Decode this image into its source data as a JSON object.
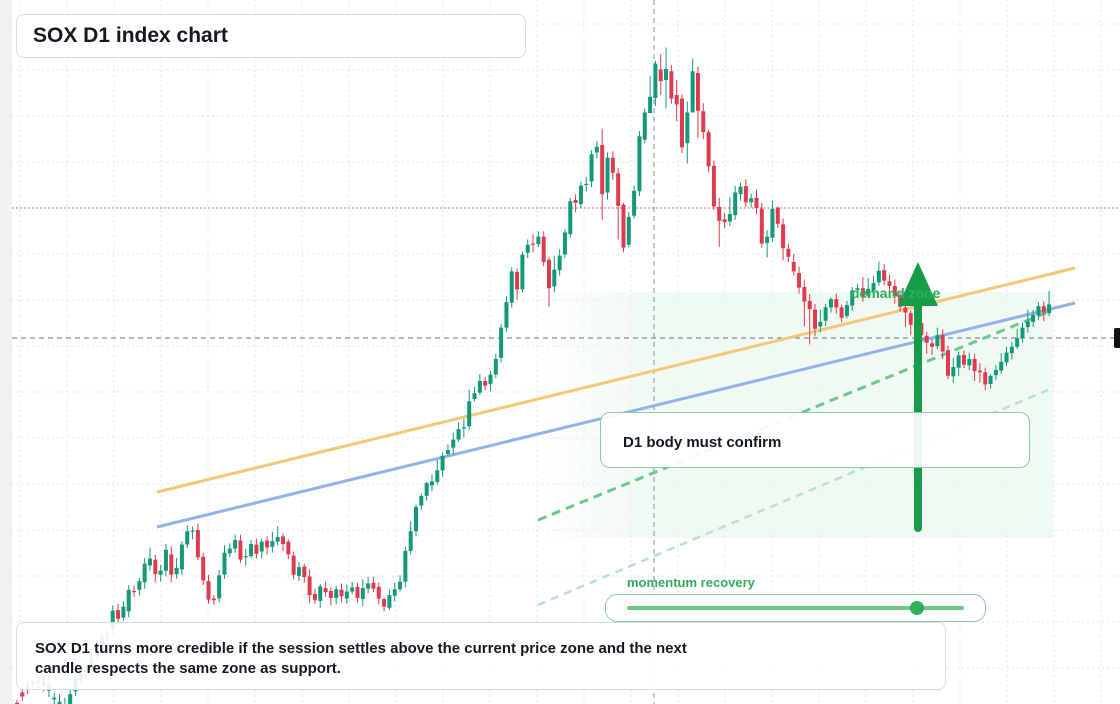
{
  "title": "SOX D1 index chart",
  "annotations": {
    "demand_zone": "demand zone",
    "confirm": "D1 body must confirm",
    "momentum": "momentum recovery",
    "note": "SOX D1 turns more credible if the session settles above the current price zone and the next candle respects the same zone as support."
  },
  "colors": {
    "up": "#12997a",
    "down": "#e03a4e",
    "orange_line": "#f5c878",
    "blue_line": "#93b2ec",
    "green_accent": "#2fae5c"
  },
  "momentum_level": 0.86,
  "chart_data": {
    "type": "candlestick",
    "title": "SOX D1 index chart",
    "ylim": [
      0,
      100
    ],
    "grid": true,
    "candles": [
      [
        -0.5,
        -1.2,
        -2.7,
        0.0
      ],
      [
        1.3,
        0.6,
        -0.2,
        1.9
      ],
      [
        2.5,
        1.7,
        1.0,
        3.5
      ],
      [
        3.2,
        2.8,
        2.0,
        4.0
      ],
      [
        3.0,
        3.4,
        1.8,
        4.5
      ],
      [
        2.5,
        3.2,
        1.5,
        4.4
      ],
      [
        1.6,
        2.8,
        0.5,
        4.2
      ],
      [
        0.1,
        0.4,
        -1.0,
        1.2
      ],
      [
        -1.5,
        -0.3,
        -2.9,
        1.0
      ],
      [
        -2.0,
        -0.8,
        -3.3,
        0.4
      ],
      [
        -2.5,
        1.0,
        -3.5,
        1.9
      ],
      [
        1.5,
        3.7,
        0.7,
        4.7
      ],
      [
        3.2,
        4.6,
        2.5,
        5.6
      ],
      [
        4.8,
        5.4,
        3.5,
        6.5
      ],
      [
        5.2,
        7.4,
        4.4,
        8.7
      ],
      [
        7.5,
        8.3,
        6.5,
        8.9
      ],
      [
        8.6,
        10.7,
        8.0,
        11.4
      ],
      [
        10.9,
        10.9,
        10.2,
        12.1
      ],
      [
        12.1,
        15.4,
        11.2,
        16.3
      ],
      [
        15.5,
        14.0,
        13.0,
        16.6
      ],
      [
        14.2,
        16.1,
        13.7,
        17.0
      ],
      [
        15.3,
        19.0,
        14.3,
        19.8
      ],
      [
        18.8,
        18.7,
        17.8,
        19.7
      ],
      [
        19.0,
        20.5,
        18.0,
        21.0
      ],
      [
        20.3,
        23.5,
        19.2,
        24.5
      ],
      [
        23.2,
        24.4,
        22.3,
        26.3
      ],
      [
        24.2,
        21.7,
        20.3,
        25.0
      ],
      [
        21.6,
        22.3,
        20.4,
        23.3
      ],
      [
        22.3,
        25.9,
        21.3,
        26.9
      ],
      [
        25.1,
        21.6,
        20.3,
        26.5
      ],
      [
        21.7,
        22.8,
        20.9,
        24.5
      ],
      [
        22.5,
        26.8,
        21.6,
        27.4
      ],
      [
        26.8,
        29.1,
        26.2,
        30.1
      ],
      [
        29.2,
        29.2,
        27.7,
        29.9
      ],
      [
        29.3,
        24.6,
        24.1,
        30.4
      ],
      [
        24.7,
        20.6,
        19.8,
        25.4
      ],
      [
        20.5,
        17.3,
        16.6,
        21.6
      ],
      [
        17.5,
        17.2,
        16.4,
        18.1
      ],
      [
        17.5,
        21.5,
        16.8,
        22.4
      ],
      [
        21.6,
        25.4,
        20.9,
        26.7
      ],
      [
        25.3,
        26.1,
        24.6,
        27.0
      ],
      [
        26.1,
        27.6,
        25.4,
        28.5
      ],
      [
        27.5,
        24.2,
        23.6,
        28.5
      ],
      [
        24.6,
        24.8,
        23.1,
        26.1
      ],
      [
        24.8,
        26.9,
        24.5,
        27.6
      ],
      [
        26.8,
        25.2,
        24.4,
        27.8
      ],
      [
        25.6,
        27.3,
        24.4,
        27.8
      ],
      [
        27.5,
        26.3,
        25.1,
        28.2
      ],
      [
        26.4,
        27.4,
        25.4,
        29.0
      ],
      [
        27.3,
        28.1,
        26.7,
        30.0
      ],
      [
        28.2,
        26.9,
        25.7,
        28.7
      ],
      [
        27.3,
        25.1,
        24.3,
        27.7
      ],
      [
        24.9,
        21.6,
        20.8,
        25.6
      ],
      [
        21.4,
        22.9,
        20.5,
        23.8
      ],
      [
        23.0,
        21.2,
        20.2,
        23.5
      ],
      [
        21.3,
        18.1,
        16.7,
        22.5
      ],
      [
        18.3,
        17.2,
        16.6,
        19.2
      ],
      [
        17.1,
        19.6,
        15.9,
        20.0
      ],
      [
        19.3,
        18.6,
        17.8,
        20.4
      ],
      [
        18.8,
        17.6,
        16.3,
        19.4
      ],
      [
        17.6,
        19.1,
        16.5,
        19.7
      ],
      [
        19.0,
        17.9,
        16.8,
        20.1
      ],
      [
        17.5,
        18.7,
        16.6,
        19.9
      ],
      [
        18.7,
        19.4,
        18.3,
        20.4
      ],
      [
        19.5,
        17.6,
        16.8,
        20.2
      ],
      [
        17.4,
        19.3,
        16.2,
        20.8
      ],
      [
        19.2,
        20.1,
        18.4,
        21.2
      ],
      [
        20.2,
        19.2,
        18.6,
        21.2
      ],
      [
        19.5,
        17.5,
        16.5,
        20.3
      ],
      [
        17.4,
        16.1,
        15.3,
        17.7
      ],
      [
        15.9,
        18.1,
        15.5,
        19.0
      ],
      [
        18.0,
        19.1,
        17.0,
        20.2
      ],
      [
        19.1,
        20.4,
        18.7,
        21.5
      ],
      [
        20.4,
        25.7,
        19.4,
        26.4
      ],
      [
        25.7,
        29.1,
        25.1,
        30.8
      ],
      [
        29.1,
        33.3,
        28.2,
        33.7
      ],
      [
        33.5,
        35.2,
        32.8,
        35.6
      ],
      [
        35.2,
        37.4,
        34.4,
        37.6
      ],
      [
        37.0,
        37.7,
        36.0,
        38.9
      ],
      [
        37.6,
        39.6,
        37.2,
        41.4
      ],
      [
        39.6,
        42.1,
        38.5,
        42.7
      ],
      [
        42.4,
        43.1,
        42.1,
        44.1
      ],
      [
        43.5,
        44.9,
        42.3,
        46.1
      ],
      [
        44.9,
        46.7,
        44.5,
        47.9
      ],
      [
        46.8,
        47.0,
        45.3,
        48.4
      ],
      [
        47.2,
        51.5,
        46.6,
        53.5
      ],
      [
        51.9,
        52.9,
        51.5,
        54.0
      ],
      [
        53.0,
        55.0,
        52.6,
        56.2
      ],
      [
        55.0,
        54.2,
        53.4,
        55.7
      ],
      [
        54.5,
        56.1,
        53.3,
        56.8
      ],
      [
        56.1,
        58.8,
        55.5,
        59.7
      ],
      [
        59.0,
        64.2,
        58.2,
        64.8
      ],
      [
        64.2,
        68.6,
        63.5,
        69.6
      ],
      [
        68.5,
        73.9,
        67.7,
        74.6
      ],
      [
        73.8,
        70.8,
        69.0,
        74.4
      ],
      [
        70.8,
        76.8,
        70.3,
        77.3
      ],
      [
        77.1,
        78.5,
        76.2,
        79.4
      ],
      [
        78.7,
        78.5,
        77.2,
        80.3
      ],
      [
        78.6,
        79.9,
        78.1,
        80.8
      ],
      [
        79.9,
        75.5,
        74.8,
        80.8
      ],
      [
        75.9,
        71.0,
        67.8,
        76.4
      ],
      [
        71.3,
        74.2,
        70.3,
        76.5
      ],
      [
        74.1,
        76.6,
        73.2,
        77.7
      ],
      [
        76.8,
        80.6,
        76.2,
        81.2
      ],
      [
        80.3,
        86.0,
        79.7,
        86.6
      ],
      [
        86.2,
        85.7,
        84.1,
        87.2
      ],
      [
        85.5,
        88.7,
        84.8,
        89.4
      ],
      [
        89.0,
        89.0,
        87.7,
        90.2
      ],
      [
        89.4,
        94.1,
        88.4,
        94.8
      ],
      [
        94.4,
        95.4,
        93.4,
        96.4
      ],
      [
        95.7,
        87.2,
        82.8,
        98.5
      ],
      [
        87.5,
        93.5,
        86.3,
        94.4
      ],
      [
        93.5,
        90.9,
        89.7,
        94.6
      ],
      [
        90.8,
        85.2,
        79.4,
        91.7
      ],
      [
        85.4,
        78.0,
        77.2,
        85.7
      ],
      [
        78.5,
        83.3,
        78.0,
        84.1
      ],
      [
        83.5,
        87.8,
        83.0,
        88.7
      ],
      [
        87.7,
        97.2,
        86.9,
        98.1
      ],
      [
        96.6,
        101.3,
        96.0,
        102.0
      ],
      [
        101.2,
        104.0,
        101.2,
        107.6
      ],
      [
        103.8,
        109.7,
        102.4,
        110.2
      ],
      [
        108.7,
        106.7,
        104.3,
        111.3
      ],
      [
        106.9,
        108.8,
        102.0,
        112.5
      ],
      [
        108.4,
        103.7,
        102.8,
        109.5
      ],
      [
        104.3,
        102.7,
        99.8,
        106.9
      ],
      [
        103.7,
        95.3,
        94.3,
        104.4
      ],
      [
        96.0,
        101.3,
        92.5,
        103.2
      ],
      [
        101.3,
        108.4,
        101.3,
        110.6
      ],
      [
        108.1,
        101.6,
        96.9,
        109.2
      ],
      [
        101.5,
        97.9,
        96.7,
        102.9
      ],
      [
        97.9,
        92.0,
        91.0,
        98.3
      ],
      [
        92.1,
        85.1,
        84.5,
        93.0
      ],
      [
        85.0,
        82.6,
        78.1,
        86.6
      ],
      [
        82.9,
        82.4,
        81.3,
        84.0
      ],
      [
        82.5,
        83.8,
        81.7,
        86.7
      ],
      [
        83.6,
        87.5,
        82.8,
        88.6
      ],
      [
        87.2,
        88.5,
        86.1,
        89.2
      ],
      [
        88.6,
        85.8,
        85.0,
        89.8
      ],
      [
        85.8,
        86.5,
        84.9,
        87.3
      ],
      [
        86.6,
        84.8,
        83.8,
        88.0
      ],
      [
        84.7,
        78.7,
        78.0,
        85.7
      ],
      [
        78.8,
        79.9,
        76.3,
        81.0
      ],
      [
        79.7,
        84.7,
        79.0,
        86.1
      ],
      [
        84.9,
        82.1,
        81.4,
        85.1
      ],
      [
        82.0,
        77.9,
        75.8,
        83.0
      ],
      [
        77.8,
        76.4,
        75.5,
        78.7
      ],
      [
        75.5,
        73.9,
        73.2,
        76.9
      ],
      [
        73.6,
        71.1,
        70.1,
        74.7
      ],
      [
        71.2,
        68.7,
        64.4,
        72.5
      ],
      [
        68.8,
        67.4,
        61.3,
        70.0
      ],
      [
        67.3,
        64.0,
        62.7,
        68.3
      ],
      [
        64.4,
        65.2,
        63.4,
        67.3
      ],
      [
        65.4,
        67.7,
        64.5,
        68.3
      ],
      [
        67.7,
        69.1,
        66.8,
        69.4
      ],
      [
        69.1,
        67.7,
        66.6,
        70.1
      ],
      [
        67.7,
        65.9,
        65.1,
        68.2
      ],
      [
        66.2,
        68.1,
        65.8,
        68.8
      ],
      [
        68.0,
        70.6,
        67.1,
        71.2
      ],
      [
        70.7,
        71.0,
        70.0,
        71.8
      ],
      [
        71.0,
        69.6,
        68.7,
        72.9
      ],
      [
        69.7,
        70.9,
        69.3,
        72.8
      ],
      [
        70.6,
        71.9,
        69.7,
        73.1
      ],
      [
        72.0,
        74.0,
        71.4,
        75.6
      ],
      [
        74.1,
        72.3,
        71.5,
        75.2
      ],
      [
        72.2,
        71.4,
        70.4,
        73.4
      ],
      [
        71.4,
        69.6,
        68.3,
        72.5
      ],
      [
        69.8,
        67.8,
        67.0,
        70.3
      ],
      [
        67.7,
        66.8,
        64.3,
        68.3
      ],
      [
        66.7,
        64.7,
        63.0,
        67.2
      ],
      [
        64.7,
        65.3,
        61.5,
        66.9
      ],
      [
        65.0,
        62.9,
        61.6,
        66.2
      ],
      [
        62.8,
        61.6,
        59.7,
        63.5
      ],
      [
        61.5,
        60.9,
        59.5,
        62.3
      ],
      [
        61.0,
        62.9,
        60.5,
        64.2
      ],
      [
        62.9,
        60.1,
        58.8,
        63.9
      ],
      [
        60.3,
        55.9,
        55.3,
        61.1
      ],
      [
        55.8,
        57.4,
        54.7,
        59.0
      ],
      [
        57.3,
        59.4,
        55.9,
        60.1
      ],
      [
        59.5,
        57.8,
        57.2,
        60.3
      ],
      [
        57.7,
        58.8,
        56.9,
        59.9
      ],
      [
        58.8,
        56.7,
        55.0,
        59.7
      ],
      [
        56.8,
        56.5,
        54.7,
        58.1
      ],
      [
        56.5,
        54.4,
        53.4,
        57.3
      ],
      [
        54.5,
        55.9,
        53.7,
        56.2
      ],
      [
        56.0,
        56.9,
        55.2,
        57.7
      ],
      [
        56.8,
        58.3,
        56.2,
        59.8
      ],
      [
        58.2,
        59.9,
        57.6,
        60.9
      ],
      [
        59.8,
        60.9,
        58.7,
        61.7
      ],
      [
        60.9,
        62.4,
        60.5,
        64.0
      ],
      [
        62.5,
        64.2,
        61.6,
        65.1
      ],
      [
        64.3,
        65.3,
        63.3,
        67.3
      ],
      [
        65.2,
        66.4,
        64.3,
        67.3
      ],
      [
        66.3,
        67.9,
        65.5,
        68.6
      ],
      [
        67.9,
        66.8,
        65.3,
        68.7
      ],
      [
        66.7,
        68.2,
        66.2,
        70.5
      ]
    ]
  }
}
